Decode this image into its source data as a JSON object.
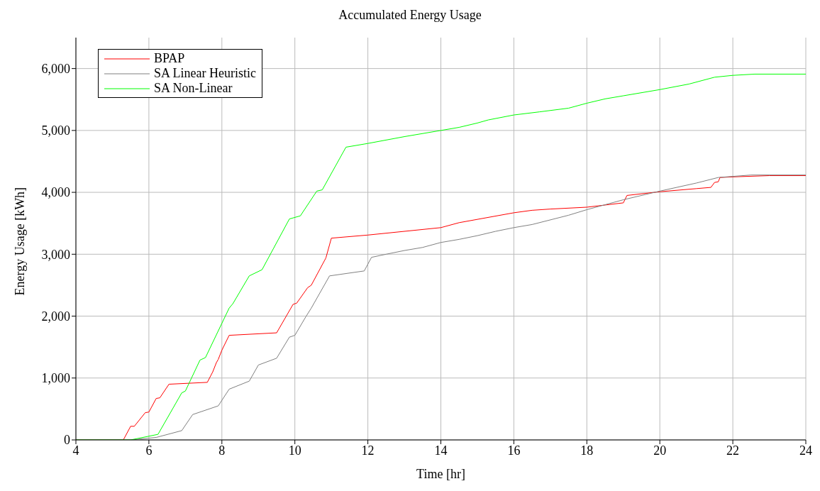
{
  "chart_data": {
    "type": "line",
    "title": "Accumulated Energy Usage",
    "xlabel": "Time [hr]",
    "ylabel": "Energy Usage [kWh]",
    "xlim": [
      4,
      24
    ],
    "xticks": [
      4,
      6,
      8,
      10,
      12,
      14,
      16,
      18,
      20,
      22,
      24
    ],
    "ylim": [
      0,
      6500
    ],
    "yticks": [
      0,
      {
        "value": 1000,
        "label": "1,000"
      },
      {
        "value": 2000,
        "label": "2,000"
      },
      {
        "value": 3000,
        "label": "3,000"
      },
      {
        "value": 4000,
        "label": "4,000"
      },
      {
        "value": 5000,
        "label": "5,000"
      },
      {
        "value": 6000,
        "label": "6,000"
      }
    ],
    "grid": true,
    "legend": "top left",
    "marker": "none",
    "line_style": "solid",
    "series": [
      {
        "name": "BPAP",
        "color": "#ff0000",
        "x": [
          4,
          5.3,
          5.5,
          5.6,
          5.9,
          6.0,
          6.2,
          6.3,
          6.55,
          7.6,
          7.75,
          7.85,
          7.9,
          8.0,
          8.2,
          9.5,
          9.95,
          10.05,
          10.35,
          10.45,
          10.85,
          11.0,
          12,
          14,
          14.5,
          16,
          16.5,
          17,
          18,
          19,
          19.1,
          20,
          21,
          21.4,
          21.5,
          21.6,
          21.65,
          22,
          23,
          24
        ],
        "values": [
          0,
          0,
          220,
          220,
          440,
          450,
          670,
          680,
          900,
          930,
          1100,
          1250,
          1300,
          1450,
          1690,
          1730,
          2190,
          2210,
          2460,
          2500,
          2940,
          3260,
          3310,
          3430,
          3510,
          3670,
          3710,
          3730,
          3760,
          3830,
          3950,
          4010,
          4060,
          4080,
          4160,
          4170,
          4240,
          4250,
          4270,
          4270
        ]
      },
      {
        "name": "SA Linear Heuristic",
        "color": "#808080",
        "x": [
          4,
          5.5,
          6.2,
          6.9,
          7.2,
          7.9,
          8.2,
          8.75,
          9.0,
          9.5,
          9.85,
          10.0,
          10.3,
          10.45,
          10.95,
          11.9,
          12.1,
          12.5,
          13.0,
          13.5,
          14.0,
          14.5,
          15.0,
          15.5,
          16,
          16.5,
          17.5,
          18,
          19,
          20,
          21,
          21.6,
          22.5,
          24
        ],
        "values": [
          0,
          0,
          40,
          150,
          410,
          550,
          820,
          950,
          1210,
          1320,
          1660,
          1690,
          1990,
          2130,
          2650,
          2730,
          2950,
          3000,
          3060,
          3110,
          3190,
          3240,
          3300,
          3370,
          3430,
          3480,
          3630,
          3720,
          3880,
          4020,
          4150,
          4240,
          4280,
          4280
        ]
      },
      {
        "name": "SA Non-Linear",
        "color": "#00ff00",
        "x": [
          4,
          5.5,
          6.25,
          6.9,
          7.0,
          7.4,
          7.55,
          8.2,
          8.3,
          8.75,
          9.1,
          9.85,
          10.15,
          10.6,
          10.75,
          11.4,
          12,
          13,
          14,
          14.5,
          15,
          15.3,
          16,
          16.7,
          17.5,
          18,
          18.5,
          19,
          20,
          20.8,
          21.5,
          22,
          22.6,
          24
        ],
        "values": [
          0,
          0,
          90,
          760,
          790,
          1290,
          1330,
          2130,
          2200,
          2650,
          2750,
          3570,
          3620,
          4020,
          4040,
          4730,
          4790,
          4900,
          5000,
          5050,
          5120,
          5170,
          5250,
          5300,
          5360,
          5440,
          5510,
          5560,
          5660,
          5750,
          5860,
          5890,
          5910,
          5910
        ]
      }
    ]
  }
}
